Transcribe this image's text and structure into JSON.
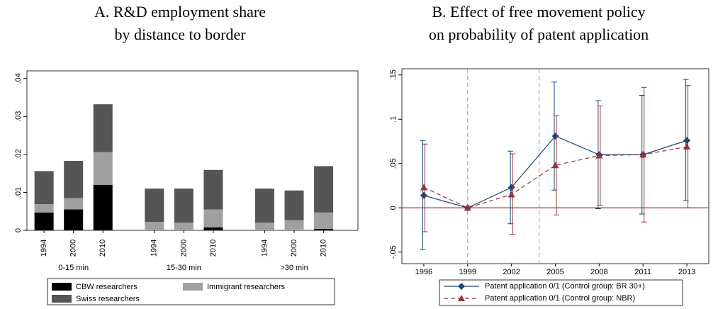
{
  "chart_data": [
    {
      "type": "stacked_bar",
      "title_lines": [
        "A. R&D employment share",
        "by distance to border"
      ],
      "categories": [
        "1994",
        "2000",
        "2010",
        "1994",
        "2000",
        "2010",
        "1994",
        "2000",
        "2010"
      ],
      "group_labels": [
        "0-15 min",
        "15-30 min",
        ">30 min"
      ],
      "series": [
        {
          "name": "CBW researchers",
          "color": "#000000",
          "values": [
            0.0047,
            0.0055,
            0.012,
            0,
            0,
            0.0008,
            0,
            0,
            0.0004
          ]
        },
        {
          "name": "Immigrant researchers",
          "color": "#a0a0a0",
          "values": [
            0.0022,
            0.003,
            0.0086,
            0.0022,
            0.002,
            0.0047,
            0.002,
            0.0027,
            0.0043
          ]
        },
        {
          "name": "Swiss researchers",
          "color": "#555555",
          "values": [
            0.0087,
            0.0098,
            0.0126,
            0.0088,
            0.009,
            0.0104,
            0.009,
            0.0078,
            0.0122
          ]
        }
      ],
      "ylim": [
        0,
        0.042
      ],
      "yticks": [
        0,
        {
          "value": 0.01,
          "label": ".01"
        },
        {
          "value": 0.02,
          "label": ".02"
        },
        {
          "value": 0.03,
          "label": ".03"
        },
        {
          "value": 0.04,
          "label": ".04"
        }
      ]
    },
    {
      "type": "line",
      "title_lines": [
        "B. Effect of free movement policy",
        "on probability of patent application"
      ],
      "categories": [
        "1996",
        "1999",
        "2002",
        "2005",
        "2008",
        "2011",
        "2013"
      ],
      "series": [
        {
          "name": "Patent application 0/1 (Control group: BR 30+)",
          "color": "#1a476f",
          "marker": "diamond",
          "dashed": false,
          "values": [
            0.014,
            0,
            0.023,
            0.081,
            0.06,
            0.06,
            0.076
          ],
          "lower": [
            -0.047,
            0,
            -0.018,
            0.02,
            -0.001,
            -0.007,
            0.008
          ],
          "upper": [
            0.076,
            0,
            0.064,
            0.142,
            0.121,
            0.127,
            0.145
          ]
        },
        {
          "name": "Patent application 0/1 (Control group: NBR)",
          "color": "#90353b",
          "marker": "triangle",
          "dashed": true,
          "values": [
            0.023,
            0,
            0.015,
            0.048,
            0.059,
            0.06,
            0.069
          ],
          "lower": [
            -0.027,
            0,
            -0.03,
            -0.008,
            0.003,
            -0.016,
            0
          ],
          "upper": [
            0.072,
            0,
            0.061,
            0.104,
            0.115,
            0.136,
            0.138
          ]
        }
      ],
      "hline": 0,
      "ylim": [
        -0.063,
        0.157
      ],
      "yticks": [
        {
          "value": -0.05,
          "label": "-.05"
        },
        0,
        {
          "value": 0.05,
          "label": ".05"
        },
        {
          "value": 0.1,
          "label": ".1"
        },
        {
          "value": 0.15,
          "label": ".15"
        }
      ]
    }
  ]
}
